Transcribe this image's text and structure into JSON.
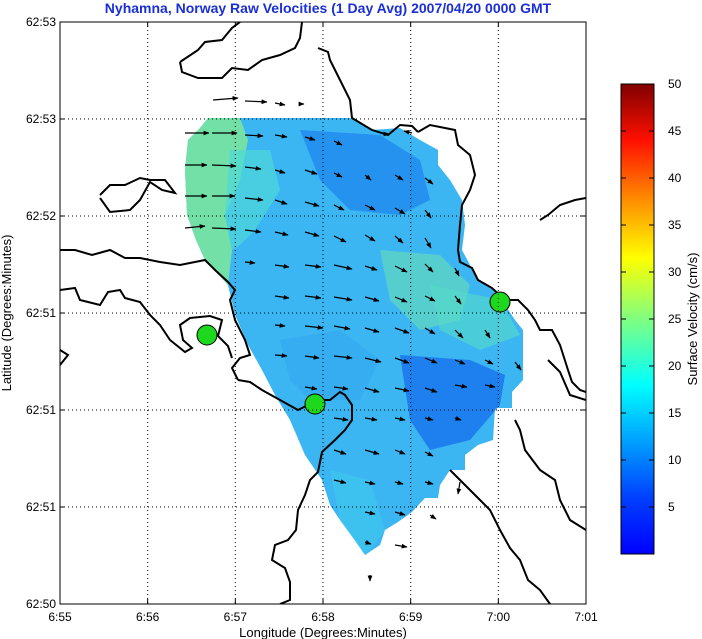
{
  "title": "Nyhamna, Norway Raw Velocities (1 Day Avg) 2007/04/20 0000 GMT",
  "x_axis": {
    "label": "Longitude (Degrees:Minutes)",
    "ticks": [
      "6:55",
      "6:56",
      "6:57",
      "6:58",
      "6:59",
      "7:00",
      "7:01"
    ]
  },
  "y_axis": {
    "label": "Latitude (Degrees:Minutes)",
    "ticks": [
      "62:50",
      "62:51",
      "62:51",
      "62:51",
      "62:52",
      "62:53",
      "62:53"
    ]
  },
  "colorbar": {
    "label": "Surface Velocity (cm/s)",
    "ticks": [
      "5",
      "10",
      "15",
      "20",
      "25",
      "30",
      "35",
      "40",
      "45",
      "50"
    ],
    "min": 0,
    "max": 50,
    "colormap": "jet"
  },
  "colors": {
    "title": "#1a2fd6",
    "coastline": "#000000",
    "station": "#1ed81e",
    "grid": "#000000"
  },
  "stations": [
    {
      "lon_min": 56.7,
      "lat_min": 51.2
    },
    {
      "lon_min": 57.9,
      "lat_min": 51.0
    },
    {
      "lon_min": 60.0,
      "lat_min": 51.4
    }
  ],
  "grid_lines": "dotted"
}
